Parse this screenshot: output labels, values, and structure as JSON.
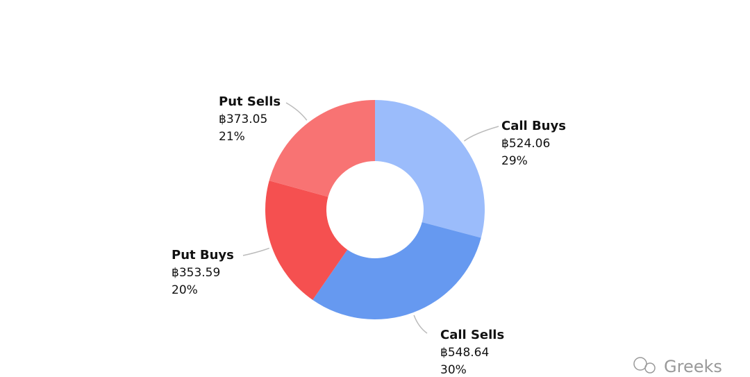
{
  "chart_data": {
    "type": "donut",
    "categories": [
      "Call Buys",
      "Call Sells",
      "Put Buys",
      "Put Sells"
    ],
    "values": [
      524.06,
      548.64,
      353.59,
      373.05
    ],
    "value_labels": [
      "฿524.06",
      "฿548.64",
      "฿353.59",
      "฿373.05"
    ],
    "percent_labels": [
      "29%",
      "30%",
      "20%",
      "21%"
    ],
    "colors": [
      "#9bbcfb",
      "#6699f0",
      "#f55050",
      "#f87373"
    ]
  },
  "watermark": "Greeks"
}
